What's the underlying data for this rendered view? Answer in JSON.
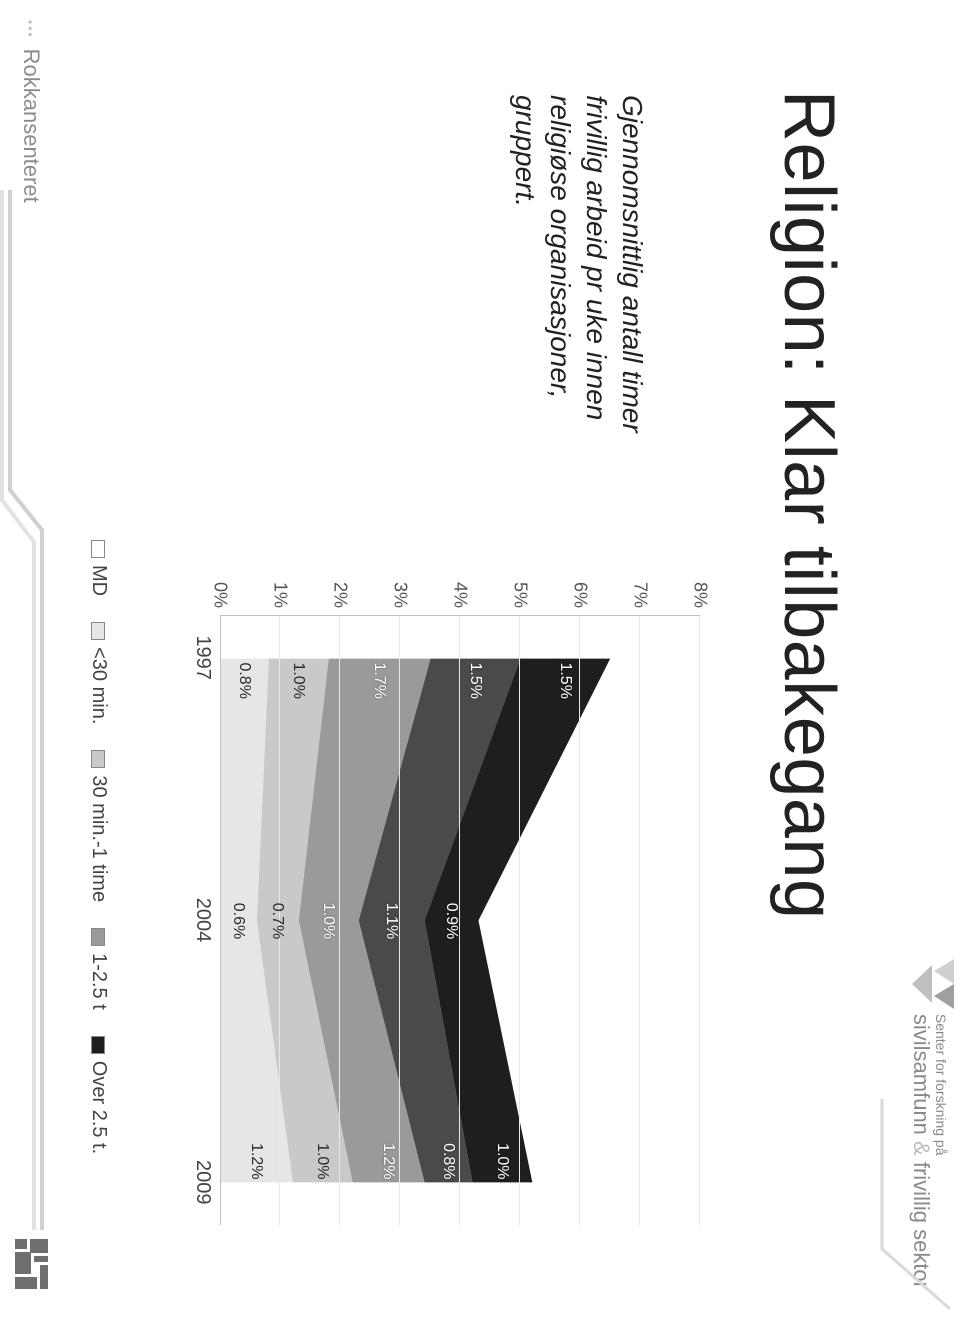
{
  "branding": {
    "line1": "Senter for forskning på",
    "line2_a": "sivilsamfunn",
    "line2_amp": "&",
    "line2_b": "frivillig sektor"
  },
  "title": "Religion: Klar tilbakegang",
  "subtitle": "Gjennomsnittlig antall timer frivillig arbeid pr uke innen religiøse organisasjoner, gruppert.",
  "chart": {
    "type": "stacked-area",
    "y_axis": {
      "min": 0,
      "max": 8,
      "step": 1,
      "unit": "%"
    },
    "x_categories": [
      "1997",
      "2004",
      "2009"
    ],
    "series": [
      {
        "key": "MD",
        "label": "MD",
        "color": "#ffffff",
        "border": "#888888",
        "text_dark": true
      },
      {
        "key": "lt30",
        "label": "<30 min.",
        "color": "#e6e6e6",
        "text_dark": true
      },
      {
        "key": "30m_1t",
        "label": "30 min.-1 time",
        "color": "#c9c9c9",
        "text_dark": true
      },
      {
        "key": "1_25t",
        "label": "1-2.5 t",
        "color": "#9a9a9a",
        "text_dark": false
      },
      {
        "key": "over25",
        "label": "Over 2.5 t.",
        "color": "#1e1e1e",
        "text_dark": false
      }
    ],
    "data": {
      "MD": [
        0.0,
        0.0,
        0.0
      ],
      "lt30": [
        0.8,
        0.6,
        1.2
      ],
      "30m_1t": [
        1.0,
        0.7,
        1.0
      ],
      "1_25t": [
        1.7,
        1.0,
        1.2
      ],
      "over25_lower": [
        1.5,
        1.1,
        0.8
      ],
      "over25_upper": [
        1.5,
        0.9,
        1.0
      ]
    },
    "segment_labels": [
      {
        "x": 0,
        "series": "lt30",
        "text": "0.8%"
      },
      {
        "x": 1,
        "series": "lt30",
        "text": "0.6%"
      },
      {
        "x": 2,
        "series": "lt30",
        "text": "1.2%"
      },
      {
        "x": 0,
        "series": "30m_1t",
        "text": "1.0%"
      },
      {
        "x": 1,
        "series": "30m_1t",
        "text": "0.7%"
      },
      {
        "x": 2,
        "series": "30m_1t",
        "text": "1.0%"
      },
      {
        "x": 0,
        "series": "1_25t",
        "text": "1.7%"
      },
      {
        "x": 1,
        "series": "1_25t",
        "text": "1.0%"
      },
      {
        "x": 2,
        "series": "1_25t",
        "text": "1.2%"
      },
      {
        "x": 0,
        "series": "over25_lower",
        "text": "1.5%"
      },
      {
        "x": 1,
        "series": "over25_lower",
        "text": "1.1%"
      },
      {
        "x": 2,
        "series": "over25_lower",
        "text": "0.8%"
      },
      {
        "x": 0,
        "series": "over25_upper",
        "text": "1.5%"
      },
      {
        "x": 1,
        "series": "over25_upper",
        "text": "0.9%"
      },
      {
        "x": 2,
        "series": "over25_upper",
        "text": "1.0%"
      }
    ],
    "background_color": "#ffffff",
    "grid_color": "#e8e8e8",
    "axis_color": "#bfbfbf",
    "label_fontsize": 18
  },
  "footer": {
    "left_text": "Rokkansenteret"
  },
  "colors": {
    "text": "#222222",
    "muted": "#8a8a8a",
    "frame": "#d9d9d9"
  }
}
